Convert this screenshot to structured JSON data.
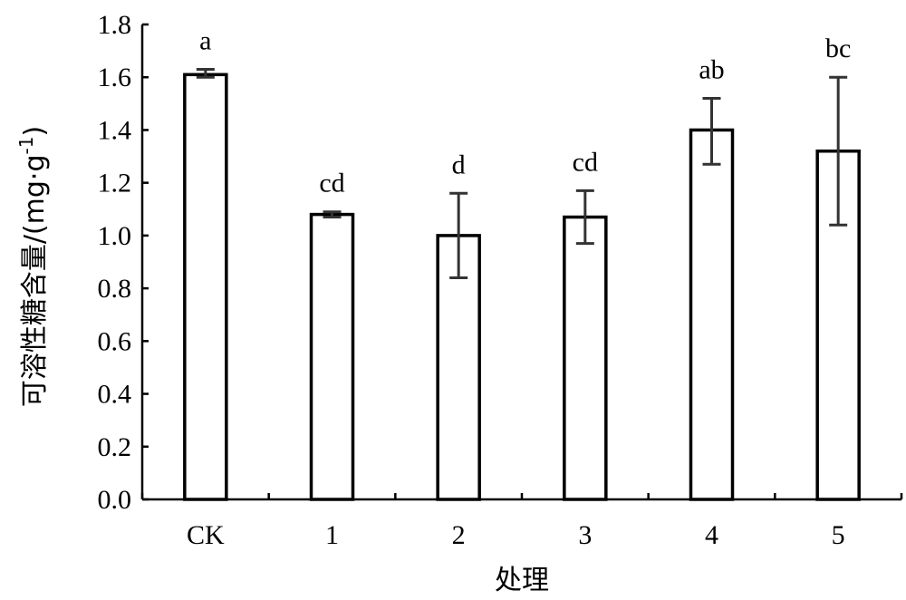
{
  "chart_data": {
    "type": "bar",
    "xlabel": "处理",
    "ylabel_main": "可溶性糖含量/(mg·g",
    "ylabel_sup": "-1",
    "ylabel_close": ")",
    "ylim": [
      0,
      1.8
    ],
    "ytick_values": [
      0,
      0.2,
      0.4,
      0.6,
      0.8,
      1.0,
      1.2,
      1.4,
      1.6,
      1.8
    ],
    "ytick_labels": [
      "0.0",
      "0.2",
      "0.4",
      "0.6",
      "0.8",
      "1.0",
      "1.2",
      "1.4",
      "1.6",
      "1.8"
    ],
    "categories": [
      "CK",
      "1",
      "2",
      "3",
      "4",
      "5"
    ],
    "values": [
      1.61,
      1.08,
      1.0,
      1.07,
      1.4,
      1.32
    ],
    "error_high": [
      1.63,
      1.09,
      1.16,
      1.17,
      1.52,
      1.6
    ],
    "error_low": [
      1.6,
      1.07,
      0.84,
      0.97,
      1.27,
      1.04
    ],
    "significance_labels": [
      "a",
      "cd",
      "d",
      "cd",
      "ab",
      "bc"
    ],
    "grid": false,
    "legend": "none"
  }
}
